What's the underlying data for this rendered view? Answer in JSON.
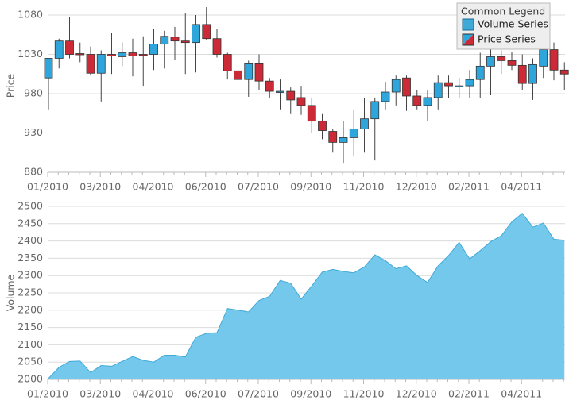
{
  "chart_data": [
    {
      "type": "candlestick",
      "y_label": "Price",
      "legend_title": "Common Legend",
      "categories": [
        "01/2010",
        null,
        null,
        null,
        null,
        "03/2010",
        null,
        null,
        null,
        null,
        "04/2010",
        null,
        null,
        null,
        null,
        "06/2010",
        null,
        null,
        null,
        null,
        "07/2010",
        null,
        null,
        null,
        null,
        "09/2010",
        null,
        null,
        null,
        null,
        "11/2010",
        null,
        null,
        null,
        null,
        "12/2010",
        null,
        null,
        null,
        null,
        "02/2011",
        null,
        null,
        null,
        null,
        "04/2011",
        null,
        null,
        null,
        null
      ],
      "series": [
        {
          "name": "Price Series",
          "up_color": "#2ea6dc",
          "down_color": "#cc2a36",
          "open": [
            1000,
            1025,
            1047,
            1031,
            1030,
            1006,
            1030,
            1027,
            1032,
            1030,
            1030,
            1043,
            1052,
            1047,
            1045,
            1068,
            1050,
            1030,
            1009,
            998,
            1018,
            996,
            983,
            983,
            975,
            965,
            945,
            932,
            918,
            924,
            935,
            948,
            970,
            982,
            1000,
            977,
            965,
            975,
            994,
            990,
            990,
            998,
            1015,
            1027,
            1022,
            1016,
            993,
            1015,
            1036,
            1010
          ],
          "high": [
            1025,
            1050,
            1077,
            1045,
            1040,
            1035,
            1057,
            1045,
            1050,
            1053,
            1062,
            1060,
            1065,
            1083,
            1080,
            1090,
            1062,
            1032,
            1010,
            1022,
            1030,
            1000,
            998,
            988,
            990,
            975,
            955,
            935,
            945,
            960,
            975,
            975,
            995,
            1003,
            1003,
            985,
            985,
            1003,
            1003,
            1000,
            1010,
            1032,
            1050,
            1035,
            1033,
            1030,
            1025,
            1060,
            1045,
            1020
          ],
          "low": [
            960,
            1012,
            1025,
            1020,
            1003,
            970,
            1005,
            1015,
            1002,
            990,
            1010,
            1012,
            1023,
            1005,
            1007,
            1048,
            1026,
            998,
            988,
            976,
            985,
            975,
            960,
            955,
            953,
            930,
            922,
            905,
            892,
            900,
            905,
            895,
            960,
            965,
            958,
            960,
            945,
            960,
            975,
            975,
            975,
            975,
            978,
            1005,
            1010,
            985,
            972,
            1000,
            997,
            985
          ],
          "close": [
            1025,
            1047,
            1030,
            1030,
            1006,
            1030,
            1028,
            1032,
            1028,
            1029,
            1043,
            1053,
            1047,
            1045,
            1068,
            1050,
            1030,
            1009,
            998,
            1018,
            996,
            983,
            983,
            972,
            965,
            945,
            933,
            918,
            924,
            935,
            948,
            970,
            982,
            998,
            977,
            965,
            975,
            994,
            990,
            990,
            998,
            1015,
            1027,
            1022,
            1016,
            993,
            1017,
            1036,
            1010,
            1005
          ]
        }
      ],
      "ylim": [
        880,
        1080
      ],
      "yticks": [
        880,
        930,
        980,
        1030,
        1080
      ],
      "grid": true
    },
    {
      "type": "area",
      "y_label": "Volume",
      "categories": [
        "01/2010",
        null,
        null,
        null,
        null,
        "03/2010",
        null,
        null,
        null,
        null,
        "04/2010",
        null,
        null,
        null,
        null,
        "06/2010",
        null,
        null,
        null,
        null,
        "07/2010",
        null,
        null,
        null,
        null,
        "09/2010",
        null,
        null,
        null,
        null,
        "11/2010",
        null,
        null,
        null,
        null,
        "12/2010",
        null,
        null,
        null,
        null,
        "02/2011",
        null,
        null,
        null,
        null,
        "04/2011",
        null,
        null,
        null,
        null
      ],
      "series": [
        {
          "name": "Volume Series",
          "color": "#74c8ec",
          "line_color": "#3fa9d8",
          "values": [
            2003,
            2035,
            2052,
            2053,
            2020,
            2040,
            2038,
            2052,
            2066,
            2055,
            2050,
            2070,
            2070,
            2065,
            2122,
            2133,
            2135,
            2205,
            2200,
            2195,
            2228,
            2240,
            2286,
            2278,
            2232,
            2270,
            2310,
            2318,
            2312,
            2308,
            2325,
            2360,
            2343,
            2320,
            2328,
            2300,
            2280,
            2328,
            2358,
            2396,
            2348,
            2372,
            2398,
            2415,
            2455,
            2480,
            2440,
            2452,
            2405,
            2402
          ]
        }
      ],
      "ylim": [
        2000,
        2500
      ],
      "yticks": [
        2000,
        2050,
        2100,
        2150,
        2200,
        2250,
        2300,
        2350,
        2400,
        2450,
        2500
      ],
      "grid": true
    }
  ]
}
